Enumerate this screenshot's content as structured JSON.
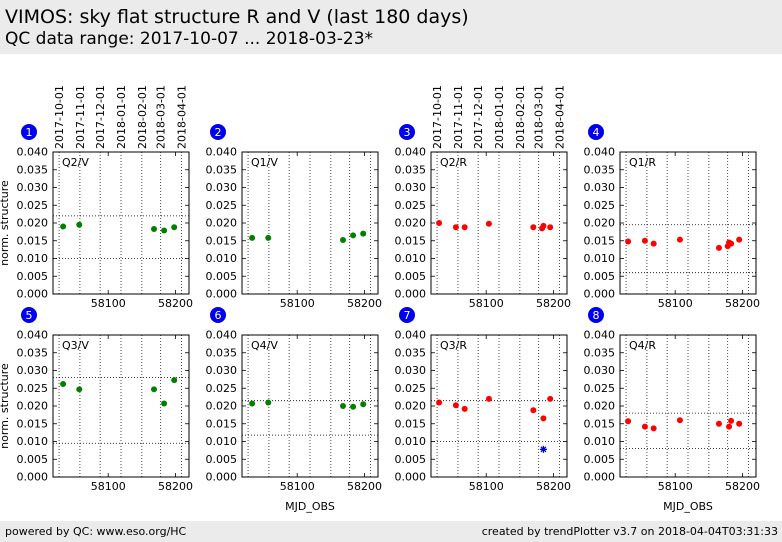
{
  "header": {
    "title": "VIMOS: sky flat structure R and V (last 180 days)",
    "subtitle": "QC data range: 2017-10-07 ... 2018-03-23*"
  },
  "footer": {
    "left": "powered by QC: www.eso.org/HC",
    "right": "created by trendPlotter v3.7 on 2018-04-04T03:31:33"
  },
  "colors": {
    "V": "#008000",
    "R": "#ff0000",
    "flag": "#0000cc",
    "badge": "#0000ee"
  },
  "date_ticks": [
    {
      "label": "2017-10-01",
      "mjd": 58027
    },
    {
      "label": "2017-11-01",
      "mjd": 58058
    },
    {
      "label": "2017-12-01",
      "mjd": 58088
    },
    {
      "label": "2018-01-01",
      "mjd": 58119
    },
    {
      "label": "2018-02-01",
      "mjd": 58150
    },
    {
      "label": "2018-03-01",
      "mjd": 58178
    },
    {
      "label": "2018-04-01",
      "mjd": 58209
    }
  ],
  "chart_data": [
    {
      "type": "scatter",
      "panel_number": "1",
      "label": "Q2/V",
      "band": "V",
      "xlim": [
        58018,
        58220
      ],
      "ylim": [
        0,
        0.04
      ],
      "yticks": [
        "0.000",
        "0.005",
        "0.010",
        "0.015",
        "0.020",
        "0.025",
        "0.030",
        "0.035",
        "0.040"
      ],
      "xticks": [
        58100,
        58200
      ],
      "ylabel": "norm. structure",
      "xlabel": "",
      "ref_lines": [
        0.022,
        0.01
      ],
      "points": [
        [
          58033,
          0.019
        ],
        [
          58057,
          0.0195
        ],
        [
          58168,
          0.0183
        ],
        [
          58183,
          0.0179
        ],
        [
          58198,
          0.0188
        ]
      ]
    },
    {
      "type": "scatter",
      "panel_number": "2",
      "label": "Q1/V",
      "band": "V",
      "xlim": [
        58018,
        58220
      ],
      "ylim": [
        0,
        0.04
      ],
      "yticks": [
        "0.000",
        "0.005",
        "0.010",
        "0.015",
        "0.020",
        "0.025",
        "0.030",
        "0.035",
        "0.040"
      ],
      "xticks": [
        58100,
        58200
      ],
      "ylabel": "",
      "xlabel": "",
      "ref_lines": [],
      "points": [
        [
          58033,
          0.0158
        ],
        [
          58057,
          0.0158
        ],
        [
          58168,
          0.0152
        ],
        [
          58183,
          0.0165
        ],
        [
          58198,
          0.017
        ]
      ]
    },
    {
      "type": "scatter",
      "panel_number": "3",
      "label": "Q2/R",
      "band": "R",
      "xlim": [
        58018,
        58220
      ],
      "ylim": [
        0,
        0.04
      ],
      "yticks": [
        "0.000",
        "0.005",
        "0.010",
        "0.015",
        "0.020",
        "0.025",
        "0.030",
        "0.035",
        "0.040"
      ],
      "xticks": [
        58100,
        58200
      ],
      "ylabel": "",
      "xlabel": "",
      "ref_lines": [],
      "points": [
        [
          58030,
          0.02
        ],
        [
          58055,
          0.0188
        ],
        [
          58068,
          0.0188
        ],
        [
          58104,
          0.0198
        ],
        [
          58170,
          0.0188
        ],
        [
          58183,
          0.0185
        ],
        [
          58185,
          0.0192
        ],
        [
          58195,
          0.0188
        ]
      ]
    },
    {
      "type": "scatter",
      "panel_number": "4",
      "label": "Q1/R",
      "band": "R",
      "xlim": [
        58018,
        58220
      ],
      "ylim": [
        0,
        0.04
      ],
      "yticks": [
        "0.000",
        "0.005",
        "0.010",
        "0.015",
        "0.020",
        "0.025",
        "0.030",
        "0.035",
        "0.040"
      ],
      "xticks": [
        58100,
        58200
      ],
      "ylabel": "",
      "xlabel": "",
      "ref_lines": [
        0.0195,
        0.006
      ],
      "points": [
        [
          58030,
          0.0148
        ],
        [
          58055,
          0.015
        ],
        [
          58068,
          0.0142
        ],
        [
          58107,
          0.0153
        ],
        [
          58165,
          0.013
        ],
        [
          58178,
          0.0135
        ],
        [
          58180,
          0.0145
        ],
        [
          58183,
          0.0142
        ],
        [
          58195,
          0.0153
        ]
      ]
    },
    {
      "type": "scatter",
      "panel_number": "5",
      "label": "Q3/V",
      "band": "V",
      "xlim": [
        58018,
        58220
      ],
      "ylim": [
        0,
        0.04
      ],
      "yticks": [
        "0.000",
        "0.005",
        "0.010",
        "0.015",
        "0.020",
        "0.025",
        "0.030",
        "0.035",
        "0.040"
      ],
      "xticks": [
        58100,
        58200
      ],
      "ylabel": "norm. structure",
      "xlabel": "",
      "ref_lines": [
        0.028,
        0.0095
      ],
      "points": [
        [
          58033,
          0.0262
        ],
        [
          58057,
          0.0247
        ],
        [
          58168,
          0.0247
        ],
        [
          58183,
          0.0207
        ],
        [
          58198,
          0.0273
        ]
      ]
    },
    {
      "type": "scatter",
      "panel_number": "6",
      "label": "Q4/V",
      "band": "V",
      "xlim": [
        58018,
        58220
      ],
      "ylim": [
        0,
        0.04
      ],
      "yticks": [
        "0.000",
        "0.005",
        "0.010",
        "0.015",
        "0.020",
        "0.025",
        "0.030",
        "0.035",
        "0.040"
      ],
      "xticks": [
        58100,
        58200
      ],
      "ylabel": "",
      "xlabel": "MJD_OBS",
      "ref_lines": [
        0.0215,
        0.0118
      ],
      "points": [
        [
          58033,
          0.0207
        ],
        [
          58057,
          0.021
        ],
        [
          58168,
          0.02
        ],
        [
          58183,
          0.0198
        ],
        [
          58198,
          0.0205
        ]
      ]
    },
    {
      "type": "scatter",
      "panel_number": "7",
      "label": "Q3/R",
      "band": "R",
      "xlim": [
        58018,
        58220
      ],
      "ylim": [
        0,
        0.04
      ],
      "yticks": [
        "0.000",
        "0.005",
        "0.010",
        "0.015",
        "0.020",
        "0.025",
        "0.030",
        "0.035",
        "0.040"
      ],
      "xticks": [
        58100,
        58200
      ],
      "ylabel": "",
      "xlabel": "",
      "ref_lines": [
        0.0215,
        0.01
      ],
      "points": [
        [
          58030,
          0.021
        ],
        [
          58055,
          0.0202
        ],
        [
          58068,
          0.0192
        ],
        [
          58104,
          0.022
        ],
        [
          58170,
          0.0188
        ],
        [
          58185,
          0.0165
        ],
        [
          58195,
          0.022
        ]
      ],
      "flagged": [
        [
          58185,
          0.0078
        ]
      ]
    },
    {
      "type": "scatter",
      "panel_number": "8",
      "label": "Q4/R",
      "band": "R",
      "xlim": [
        58018,
        58220
      ],
      "ylim": [
        0,
        0.04
      ],
      "yticks": [
        "0.000",
        "0.005",
        "0.010",
        "0.015",
        "0.020",
        "0.025",
        "0.030",
        "0.035",
        "0.040"
      ],
      "xticks": [
        58100,
        58200
      ],
      "ylabel": "",
      "xlabel": "MJD_OBS",
      "ref_lines": [
        0.018,
        0.008
      ],
      "points": [
        [
          58030,
          0.0157
        ],
        [
          58055,
          0.0142
        ],
        [
          58068,
          0.0137
        ],
        [
          58107,
          0.016
        ],
        [
          58165,
          0.015
        ],
        [
          58180,
          0.0142
        ],
        [
          58183,
          0.0158
        ],
        [
          58195,
          0.015
        ]
      ]
    }
  ]
}
